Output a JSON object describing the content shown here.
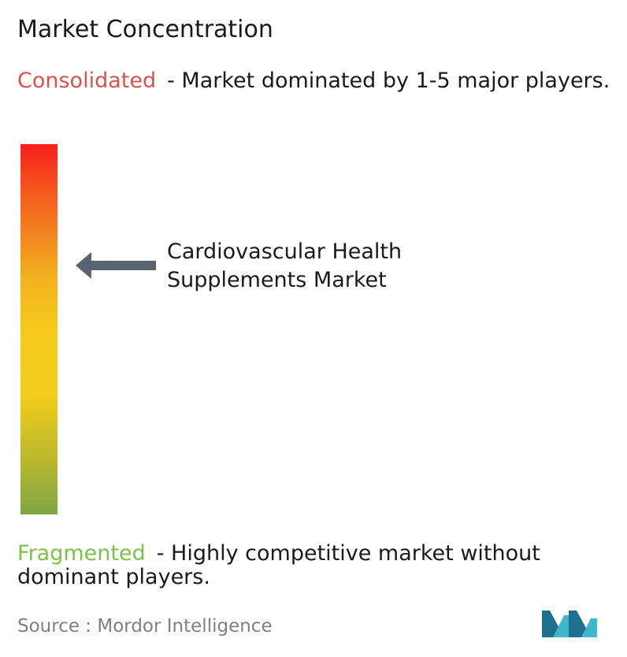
{
  "title": "Market Concentration",
  "consolidated": {
    "term": "Consolidated",
    "description": "- Market dominated by 1-5 major players."
  },
  "fragmented": {
    "term": "Fragmented",
    "description": "- Highly competitive market without dominant players."
  },
  "marker": {
    "label_line1": "Cardiovascular Health",
    "label_line2": "Supplements Market",
    "level_from_top": 0.33
  },
  "source": "Source :  Mordor Intelligence",
  "colors": {
    "consolidated": "#d9534f",
    "fragmented": "#7fbf4d",
    "arrow": "#5a6470",
    "logo_dark": "#1f6f8f",
    "logo_light": "#3fb7c9"
  },
  "logo": {
    "icon": "mordor-intelligence-logo-icon"
  }
}
